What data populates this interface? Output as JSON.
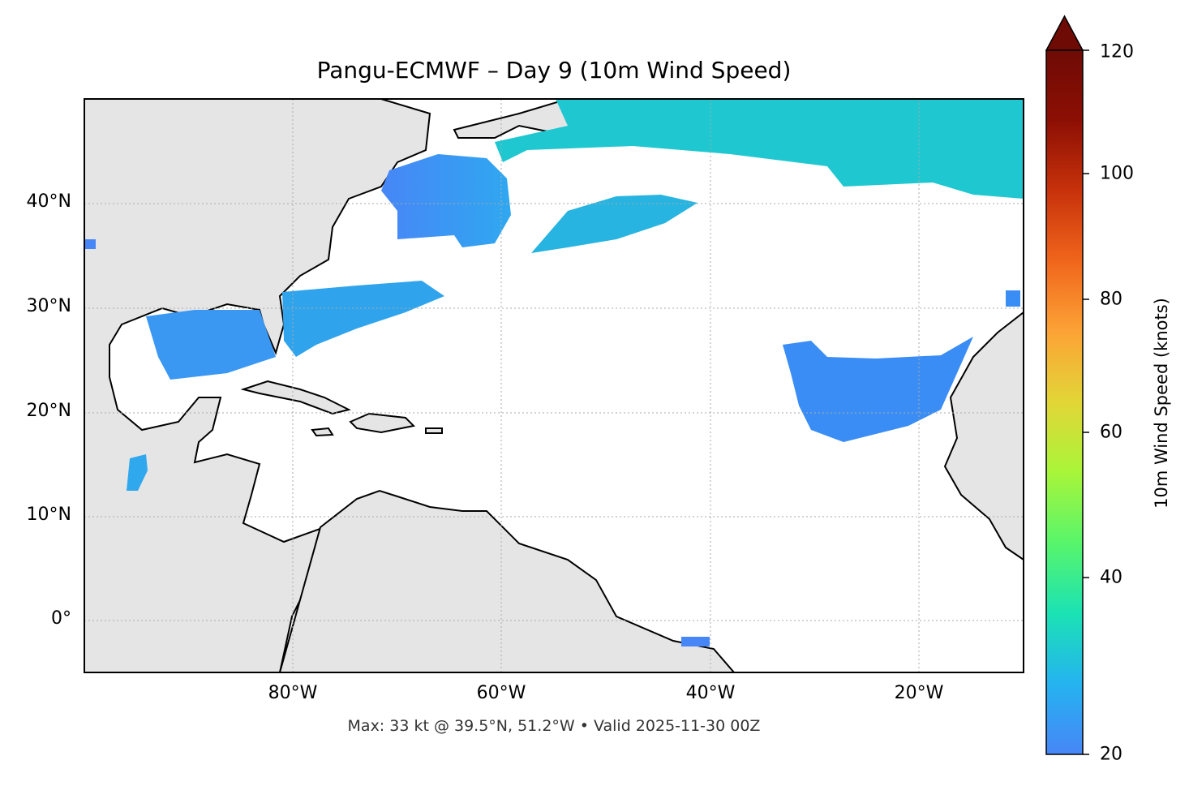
{
  "title": "Pangu-ECMWF – Day 9 (10m Wind Speed)",
  "footer": "Max: 33 kt @ 39.5°N, 51.2°W • Valid 2025-11-30 00Z",
  "map": {
    "lat_labels": [
      "40°N",
      "30°N",
      "20°N",
      "10°N",
      "0°"
    ],
    "lon_labels": [
      "80°W",
      "60°W",
      "40°W",
      "20°W"
    ],
    "land_color": "#e5e5e5",
    "ocean_color": "#ffffff",
    "gridlines": true
  },
  "colorbar": {
    "label": "10m Wind Speed (knots)",
    "ticks": [
      "120",
      "100",
      "80",
      "60",
      "40",
      "20"
    ],
    "min": 20,
    "max": 120,
    "extend": "max",
    "stops": [
      "#4786f7",
      "#25b3f0",
      "#1be2b4",
      "#58f56b",
      "#a8f53a",
      "#e2d637",
      "#fca336",
      "#f0661c",
      "#c8320b",
      "#8d0f04",
      "#6e0b05"
    ]
  }
}
